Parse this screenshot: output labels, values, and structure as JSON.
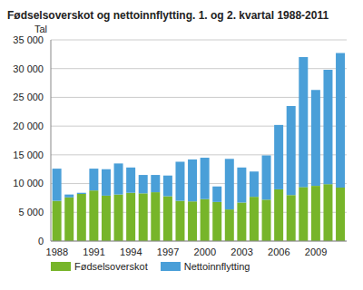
{
  "chart_data": {
    "type": "bar",
    "title": "Fødselsoverskot og nettoinnflytting. 1. og 2. kvartal 1988-2011",
    "y_label": "Tal",
    "stacked": true,
    "grid": true,
    "legend": "bottom",
    "categories": [
      "1988",
      null,
      null,
      "1991",
      null,
      null,
      "1994",
      null,
      null,
      "1997",
      null,
      null,
      "2000",
      null,
      null,
      "2003",
      null,
      null,
      "2006",
      null,
      null,
      "2009",
      null,
      null
    ],
    "series": [
      {
        "name": "Fødselsoverskot",
        "color": "#77b52a",
        "values": [
          7000,
          7600,
          8200,
          8800,
          7900,
          8100,
          8400,
          8300,
          8500,
          7800,
          7000,
          6900,
          7300,
          6800,
          5500,
          6700,
          7700,
          7200,
          9000,
          8000,
          9400,
          9600,
          9900,
          9300
        ]
      },
      {
        "name": "Nettoinnflytting",
        "color": "#4a9fd8",
        "values": [
          5600,
          500,
          200,
          3800,
          4600,
          5400,
          4400,
          3200,
          3000,
          3600,
          6800,
          7300,
          7200,
          2700,
          8800,
          6100,
          4400,
          7700,
          11200,
          15500,
          22600,
          16700,
          19900,
          23400
        ]
      }
    ],
    "ylim": [
      0,
      35000
    ],
    "yticks": [
      0,
      {
        "value": 5000,
        "label": "5 000"
      },
      {
        "value": 10000,
        "label": "10 000"
      },
      {
        "value": 15000,
        "label": "15 000"
      },
      {
        "value": 20000,
        "label": "20 000"
      },
      {
        "value": 25000,
        "label": "25 000"
      },
      {
        "value": 30000,
        "label": "30 000"
      },
      {
        "value": 35000,
        "label": "35 000"
      }
    ]
  }
}
